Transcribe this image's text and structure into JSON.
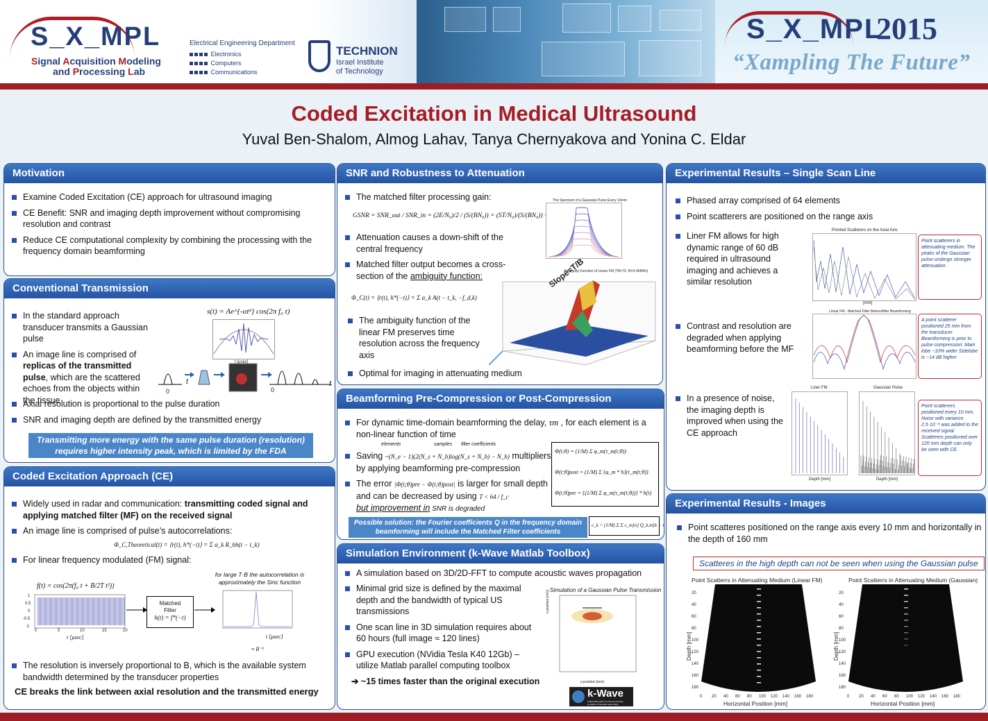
{
  "header": {
    "lab_logo_text": "S_X_MPL",
    "lab_name_line1": [
      "S",
      "ignal ",
      "A",
      "cquisition ",
      "M",
      "odeling"
    ],
    "lab_name_line2": [
      "and ",
      "P",
      "rocessing ",
      "L",
      "ab"
    ],
    "ee_dept": "Electrical Engineering Department",
    "ee_items": [
      "Electronics",
      "Computers",
      "Communications"
    ],
    "technion_name": "TECHNION",
    "technion_sub1": "Israel Institute",
    "technion_sub2": "of Technology",
    "conf_logo_text": "S_X_MPL",
    "year": "2015",
    "slogan": "“Xampling The Future”"
  },
  "title": "Coded Excitation in Medical Ultrasound",
  "authors": "Yuval Ben-Shalom, Almog Lahav, Tanya Chernyakova and Yonina C. Eldar",
  "motivation": {
    "heading": "Motivation",
    "bullets": [
      "Examine Coded Excitation (CE) approach for ultrasound imaging",
      "CE Benefit: SNR and imaging depth improvement without compromising resolution and contrast",
      "Reduce CE computational complexity by combining the processing with the frequency domain beamforming"
    ]
  },
  "conventional": {
    "heading": "Conventional Transmission",
    "b1": "In the standard approach transducer transmits a Gaussian pulse",
    "b2_pre": "An image line is comprised of ",
    "b2_bold": "replicas of the transmitted pulse",
    "b2_post": ", which are the scattered echoes from the objects within the tissue",
    "b3": "Axial resolution is proportional to the pulse duration",
    "b4": "SNR and imaging depth are defined by the transmitted energy",
    "note": "Transmitting more energy with the same pulse duration (resolution) requires higher intensity peak, which is limited by the FDA",
    "formula": "s(t) = Ae^{-αt²} cos(2π f₀ t)",
    "axis_t": "t",
    "axis_zero": "0",
    "axis_label": "t [μsec]"
  },
  "ce": {
    "heading": "Coded Excitation Approach (CE)",
    "b1_pre": "Widely used in radar and communication: ",
    "b1_bold": "transmitting coded signal and applying matched filter (MF) on the received signal",
    "b2": "An image line is comprised of pulse’s autocorrelations:",
    "autocorr_formula": "Φ_C,Theoretical(t) = ⟨r(t), h*(−t)⟩ = Σ α_k R_hh(t − t_k)",
    "b3": "For linear frequency modulated (FM) signal:",
    "fm_formula": "f(t) = cos(2π(f₀ t + B/2T t²))",
    "large_tb_note": "for large T·B the autocorrelation is approximately the Sinc function",
    "mf_label1": "Matched",
    "mf_label2": "Filter",
    "mf_formula": "h(t) = f*(−t)",
    "t_axis": "t [μsec]",
    "b_inv": "≈ B⁻¹",
    "b4": "The resolution is inversely proportional to B, which is the available system bandwidth determined by the transducer properties",
    "conclusion": "CE breaks the link between axial resolution and the transmitted energy",
    "ticks_y": [
      "1",
      "0.5",
      "0",
      "-0.5",
      "-1"
    ],
    "ticks_x": [
      "0",
      "5",
      "10",
      "15",
      "20"
    ]
  },
  "snr": {
    "heading": "SNR and Robustness to Attenuation",
    "b1": "The matched filter processing gain:",
    "gsnr_formula": "GSNR = SNR_out / SNR_in = (2E/N₀)/2 / (S/(BN₀)) = (ST/N₀)/(S/(BN₀)) = TB",
    "b2": "Attenuation causes a down-shift of the central frequency",
    "b3_pre": "Matched filter output becomes a cross-section of the ",
    "b3_ul": "ambiguity function:",
    "amb_formula": "Φ_C(t) = ⟨r(t), h*(−t)⟩ = Σ α_k A(t − t_k, −f_d,k)",
    "b4": "The ambiguity function of the linear FM preserves time resolution across the frequency axis",
    "b5": "Optimal for imaging in attenuating medium",
    "spec_title": "The Spectrum of a Gaussian Pulse Every 10mm",
    "amb_title": "Ambiguity Function of Linear FM  (TB=70, f0=3.46MHz)",
    "slope_label": "Slope=T/B"
  },
  "beamforming": {
    "heading": "Beamforming Pre-Compression or Post-Compression",
    "b1_pre": "For dynamic time-domain beamforming the delay, ",
    "b1_sym": "τm",
    "b1_post": " , for each element is a non-linear function of time",
    "b2_pre": "Saving ",
    "b2_formula": "~(N_e − 1)(2(N_s + N_h)log(N_s + N_h) − N_h)",
    "b2_post": " multipliers by applying beamforming pre-compression",
    "lbl_elements": "elements",
    "lbl_samples": "samples",
    "lbl_filter": "filter coefficients",
    "b3_pre": "The error ",
    "b3_formula": "|Φ(t;θ)pre − Φ(t;θ)post|",
    "b3_mid": " is larger for small depth and can be decreased by using ",
    "b3_cond": "T < 64 / f_c",
    "b3_tail_ul": "but improvement in",
    "b3_tail": " SNR is degraded",
    "eq1": "Φ(t;θ) = (1/M) Σ φ_m(τ_m(t;θ))",
    "eq2": "Φ(t;θ)post = (1/M) Σ {φ_m * h}(τ_m(t;θ))",
    "eq3": "Φ(t;θ)pre = {(1/M) Σ φ_m(τ_m(t;θ))} * h(t)",
    "solution": "Possible solution: the Fourier coefficients Q in the frequency domain beamforming will include the Matched Filter coefficients",
    "c_formula": "c_k = (1/M) Σ Σ c_m[n] Q_k,m[k − n]"
  },
  "simulation": {
    "heading": "Simulation Environment (k-Wave Matlab Toolbox)",
    "b1": "A simulation based on 3D/2D-FFT to compute acoustic waves propagation",
    "b2": "Minimal grid size is defined by the maximal depth and the bandwidth of typical US transmissions",
    "b3": "One scan line in 3D simulation requires about 60 hours (full image ≈ 120 lines)",
    "b4": "GPU execution  (NVidia Tesla K40 12Gb) – utilize Matlab parallel computing toolbox",
    "b5": "➔ ~15 times faster than the original execution",
    "fig_title": "Simulation of a Gaussian Pulse Transmission",
    "kwave": "k-Wave",
    "kwave_sub": "A MATLAB toolbox for the time-domain simulation of acoustic wave fields",
    "y_label": "x-position [mm]",
    "x_label": "y-position [mm]"
  },
  "exp_single": {
    "heading": "Experimental Results – Single Scan Line",
    "b1": "Phased array comprised of 64 elements",
    "b2": "Point scatterers are positioned on the range axis",
    "b3": "Liner FM allows for high dynamic range of 60 dB required in ultrasound imaging and achieves a similar resolution",
    "b4": "Contrast and resolution are degraded when applying beamforming before the MF",
    "b5": "In a presence of noise, the imaging depth is improved when using the CE approach",
    "fig1_title": "Pointed Scatterers on the Axial Axis",
    "fig2_title": "Linear FM - Matched Filter Before/After Beamforming",
    "fig3a_title": "Liner FM",
    "fig3b_title": "Gaussian Pulse",
    "note1": "Point scatterers in attenuating medium. The peaks of the Gaussian pulse undergo stronger attenuation.",
    "note2": "A point scatterer positioned 25 mm from the transducer. Beamforming is prior to pulse compression: Main lobe ~10% wider Sidelobe is ~14 dB higher",
    "note3": "Point scatterers positioned every 10 mm. Noise with variance 2.5·10⁻⁴ was added to the received signal. Scatterers positioned over 120 mm depth can only be seen with CE.",
    "x_mm": "[mm]",
    "depth_mm": "Depth [mm]",
    "db": "[dB]"
  },
  "exp_images": {
    "heading": "Experimental Results - Images",
    "b1": "Point scatteres positioned on the range axis every 10 mm and horizontally in the depth of 160 mm",
    "note": "Scatteres in the high depth can not be seen when using the Gaussian pulse",
    "img1_title": "Point Scatterrs in Attenuating Medium (Linear FM)",
    "img2_title": "Point Scatterrs in Attenuating Medium (Gaussian)",
    "y_label": "Depth [mm]",
    "x_label": "Horizontal Position [mm]",
    "y_ticks": [
      "20",
      "40",
      "60",
      "80",
      "100",
      "120",
      "140",
      "160",
      "180"
    ],
    "x_ticks": [
      "0",
      "20",
      "40",
      "60",
      "80",
      "100",
      "120",
      "140",
      "160",
      "180"
    ]
  },
  "colors": {
    "accent_red": "#a51c24",
    "panel_blue": "#2553a3",
    "bullet": "#2c4fa8"
  }
}
